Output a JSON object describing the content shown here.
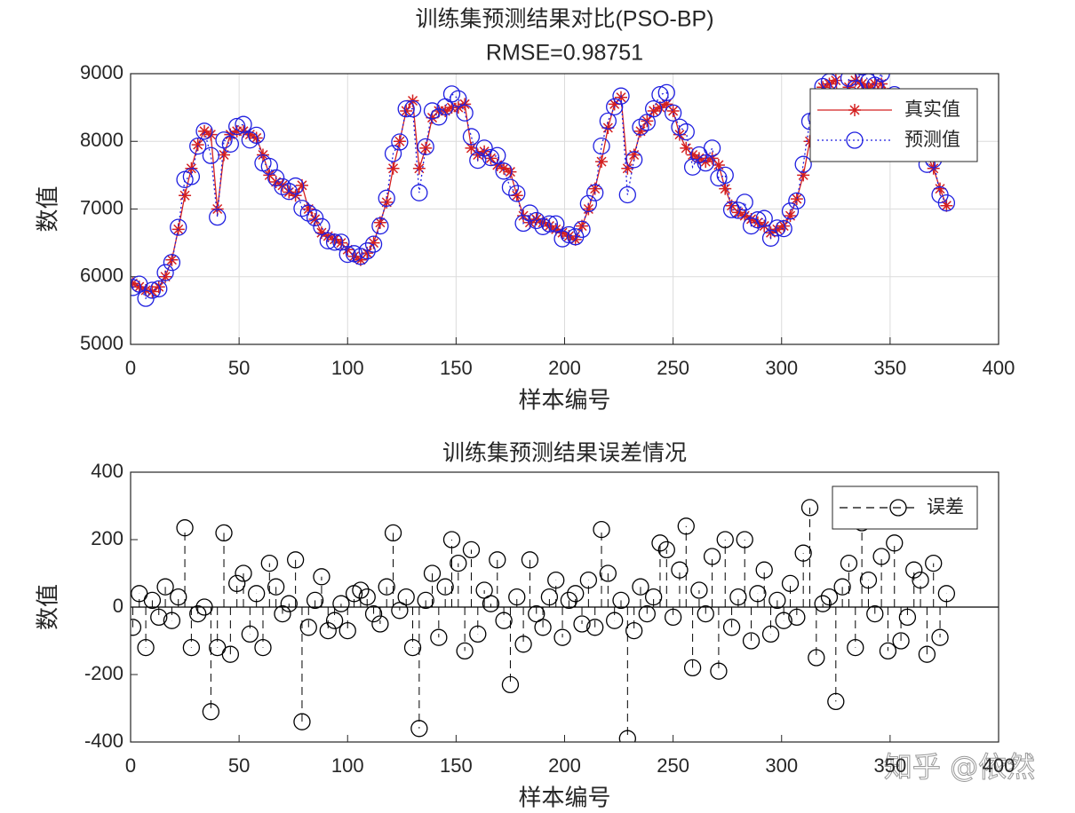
{
  "chart_data": [
    {
      "type": "line",
      "title": "训练集预测结果对比(PSO-BP)",
      "subtitle": "RMSE=0.98751",
      "xlabel": "样本编号",
      "ylabel": "数值",
      "x": [
        1,
        4,
        7,
        10,
        13,
        16,
        19,
        22,
        25,
        28,
        31,
        34,
        37,
        40,
        43,
        46,
        49,
        52,
        55,
        58,
        61,
        64,
        67,
        70,
        73,
        76,
        79,
        82,
        85,
        88,
        91,
        94,
        97,
        100,
        103,
        106,
        109,
        112,
        115,
        118,
        121,
        124,
        127,
        130,
        133,
        136,
        139,
        142,
        145,
        148,
        151,
        154,
        157,
        160,
        163,
        166,
        169,
        172,
        175,
        178,
        181,
        184,
        187,
        190,
        193,
        196,
        199,
        202,
        205,
        208,
        211,
        214,
        217,
        220,
        223,
        226,
        229,
        232,
        235,
        238,
        241,
        244,
        247,
        250,
        253,
        256,
        259,
        262,
        265,
        268,
        271,
        274,
        277,
        280,
        283,
        286,
        289,
        292,
        295,
        298,
        301,
        304,
        307,
        310,
        313,
        316,
        319,
        322,
        325,
        328,
        331,
        334,
        337,
        340,
        343,
        346,
        349,
        352,
        355,
        358,
        361,
        364,
        367,
        370,
        373,
        376
      ],
      "series": [
        {
          "name": "真实值",
          "color": "#d42020",
          "marker": "star",
          "linestyle": "solid",
          "values": [
            5900,
            5850,
            5800,
            5780,
            5850,
            6000,
            6250,
            6700,
            7200,
            7600,
            7950,
            8150,
            8100,
            7000,
            7800,
            8100,
            8150,
            8150,
            8100,
            8050,
            7800,
            7500,
            7400,
            7350,
            7250,
            7200,
            7350,
            7000,
            6850,
            6650,
            6600,
            6550,
            6500,
            6400,
            6300,
            6250,
            6350,
            6500,
            6800,
            7100,
            7600,
            8000,
            8450,
            8600,
            7600,
            7900,
            8350,
            8450,
            8450,
            8500,
            8500,
            8550,
            7900,
            7800,
            7850,
            7750,
            7650,
            7600,
            7550,
            7200,
            6900,
            6800,
            6850,
            6800,
            6750,
            6700,
            6650,
            6600,
            6550,
            6750,
            7000,
            7300,
            7700,
            8200,
            8550,
            8650,
            7600,
            7800,
            8150,
            8300,
            8450,
            8500,
            8550,
            8450,
            8100,
            7900,
            7800,
            7750,
            7700,
            7750,
            7650,
            7300,
            7050,
            6950,
            6900,
            6850,
            6800,
            6750,
            6650,
            6700,
            6750,
            6900,
            7150,
            7500,
            8000,
            8500,
            8800,
            8850,
            8900,
            8000,
            8800,
            8900,
            8850,
            8800,
            8850,
            8850,
            8700,
            8500,
            8300,
            8100,
            7950,
            7850,
            7800,
            7600,
            7300,
            7050
          ]
        },
        {
          "name": "预测值",
          "color": "#1f1fe0",
          "marker": "circle",
          "linestyle": "dotted",
          "values": [
            5840,
            5890,
            5680,
            5800,
            5820,
            6060,
            6210,
            6730,
            7435,
            7480,
            7930,
            8150,
            7790,
            6880,
            8020,
            7960,
            8220,
            8250,
            8020,
            8090,
            7680,
            7630,
            7460,
            7330,
            7260,
            7340,
            7010,
            6940,
            6870,
            6740,
            6530,
            6510,
            6510,
            6330,
            6340,
            6300,
            6380,
            6480,
            6750,
            7160,
            7820,
            7990,
            8480,
            8480,
            7240,
            7920,
            8450,
            8360,
            8510,
            8700,
            8630,
            8420,
            8070,
            7720,
            7900,
            7760,
            7790,
            7560,
            7320,
            7230,
            6790,
            6940,
            6830,
            6740,
            6780,
            6780,
            6560,
            6620,
            6590,
            6700,
            7080,
            7240,
            7930,
            8300,
            8510,
            8670,
            7210,
            7730,
            8210,
            8280,
            8480,
            8690,
            8720,
            8420,
            8210,
            8140,
            7620,
            7800,
            7680,
            7900,
            7460,
            7500,
            6990,
            6980,
            7100,
            6750,
            6840,
            6860,
            6570,
            6720,
            6710,
            6970,
            7120,
            7660,
            8295,
            8350,
            8810,
            8880,
            8620,
            8060,
            8930,
            8780,
            9100,
            8880,
            8830,
            9000,
            8570,
            8690,
            8200,
            8070,
            8060,
            7930,
            7660,
            7730,
            7210,
            7090
          ]
        }
      ],
      "xlim": [
        0,
        400
      ],
      "xticks": [
        0,
        50,
        100,
        150,
        200,
        250,
        300,
        350,
        400
      ],
      "ylim": [
        5000,
        9000
      ],
      "yticks": [
        5000,
        6000,
        7000,
        8000,
        9000
      ],
      "grid": true,
      "legend": "upper right"
    },
    {
      "type": "stem",
      "title": "训练集预测结果误差情况",
      "xlabel": "样本编号",
      "ylabel": "数值",
      "x": [
        1,
        4,
        7,
        10,
        13,
        16,
        19,
        22,
        25,
        28,
        31,
        34,
        37,
        40,
        43,
        46,
        49,
        52,
        55,
        58,
        61,
        64,
        67,
        70,
        73,
        76,
        79,
        82,
        85,
        88,
        91,
        94,
        97,
        100,
        103,
        106,
        109,
        112,
        115,
        118,
        121,
        124,
        127,
        130,
        133,
        136,
        139,
        142,
        145,
        148,
        151,
        154,
        157,
        160,
        163,
        166,
        169,
        172,
        175,
        178,
        181,
        184,
        187,
        190,
        193,
        196,
        199,
        202,
        205,
        208,
        211,
        214,
        217,
        220,
        223,
        226,
        229,
        232,
        235,
        238,
        241,
        244,
        247,
        250,
        253,
        256,
        259,
        262,
        265,
        268,
        271,
        274,
        277,
        280,
        283,
        286,
        289,
        292,
        295,
        298,
        301,
        304,
        307,
        310,
        313,
        316,
        319,
        322,
        325,
        328,
        331,
        334,
        337,
        340,
        343,
        346,
        349,
        352,
        355,
        358,
        361,
        364,
        367,
        370,
        373,
        376
      ],
      "series": [
        {
          "name": "误差",
          "color": "#000000",
          "marker": "circle",
          "linestyle": "dashed",
          "values": [
            -60,
            40,
            -120,
            20,
            -30,
            60,
            -40,
            30,
            235,
            -120,
            -20,
            0,
            -310,
            -120,
            220,
            -140,
            70,
            100,
            -80,
            40,
            -120,
            130,
            60,
            -20,
            10,
            140,
            -340,
            -60,
            20,
            90,
            -70,
            -40,
            10,
            -70,
            40,
            50,
            30,
            -20,
            -50,
            60,
            220,
            -10,
            30,
            -120,
            -360,
            20,
            100,
            -90,
            60,
            200,
            130,
            -130,
            170,
            -80,
            50,
            10,
            140,
            -40,
            -230,
            30,
            -110,
            140,
            -20,
            -60,
            30,
            80,
            -90,
            20,
            40,
            -50,
            80,
            -60,
            230,
            100,
            -40,
            20,
            -390,
            -70,
            60,
            -20,
            30,
            190,
            170,
            -30,
            110,
            240,
            -180,
            50,
            -20,
            150,
            -190,
            200,
            -60,
            30,
            200,
            -100,
            40,
            110,
            -80,
            20,
            -40,
            70,
            -30,
            160,
            295,
            -150,
            10,
            30,
            -280,
            60,
            130,
            -120,
            250,
            80,
            -20,
            150,
            -130,
            190,
            -100,
            -30,
            110,
            80,
            -140,
            130,
            -90,
            40
          ]
        }
      ],
      "xlim": [
        0,
        400
      ],
      "xticks": [
        0,
        50,
        100,
        150,
        200,
        250,
        300,
        350,
        400
      ],
      "ylim": [
        -400,
        400
      ],
      "yticks": [
        -400,
        -200,
        0,
        200,
        400
      ],
      "grid": false,
      "legend": "upper right"
    }
  ],
  "watermark": "知乎 @依然"
}
